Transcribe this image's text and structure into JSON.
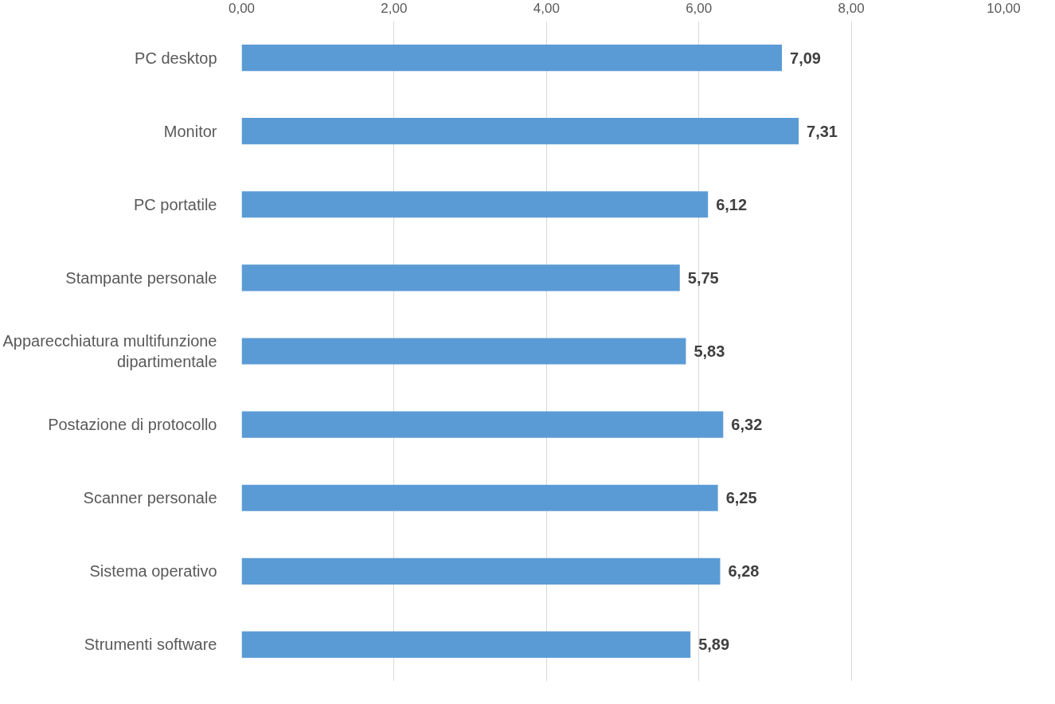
{
  "chart_data": {
    "type": "bar",
    "orientation": "horizontal",
    "categories": [
      "PC desktop",
      "Monitor",
      "PC portatile",
      "Stampante personale",
      "Apparecchiatura multifunzione dipartimentale",
      "Postazione di protocollo",
      "Scanner personale",
      "Sistema operativo",
      "Strumenti software"
    ],
    "values": [
      7.09,
      7.31,
      6.12,
      5.75,
      5.83,
      6.32,
      6.25,
      6.28,
      5.89
    ],
    "value_labels": [
      "7,09",
      "7,31",
      "6,12",
      "5,75",
      "5,83",
      "6,32",
      "6,25",
      "6,28",
      "5,89"
    ],
    "color": "#5b9bd5",
    "xlim": [
      0,
      10
    ],
    "xticks": [
      {
        "value": 0,
        "label": "0,00"
      },
      {
        "value": 2,
        "label": "2,00"
      },
      {
        "value": 4,
        "label": "4,00"
      },
      {
        "value": 6,
        "label": "6,00"
      },
      {
        "value": 8,
        "label": "8,00"
      },
      {
        "value": 10,
        "label": "10,00"
      }
    ],
    "grid": "x"
  }
}
